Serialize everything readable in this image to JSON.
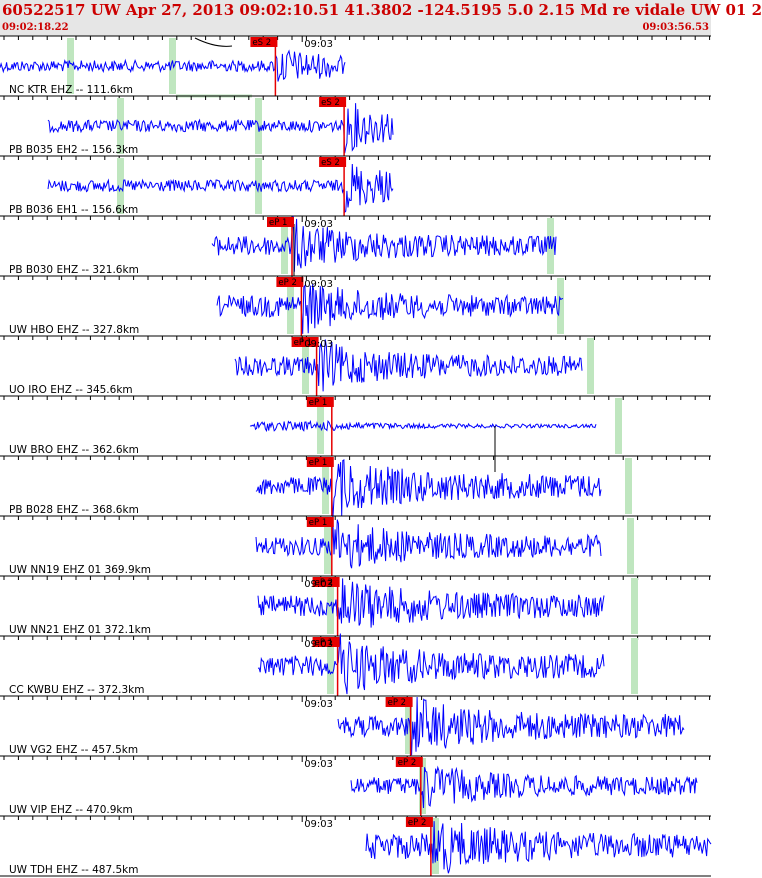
{
  "header": {
    "title": "60522517 UW Apr 27, 2013 09:02:10.51   41.3802 -124.5195  5.0 2.15 Md re vidale UW 01   2",
    "start_time": "09:02:18.22",
    "end_time": "09:03:56.53"
  },
  "colors": {
    "trace": "#0000ff",
    "pick": "#e60000",
    "window": "#bfe6bf",
    "text": "#000000",
    "header_text": "#cc0000"
  },
  "chart_data": {
    "type": "line",
    "title": "60522517 UW Apr 27, 2013 09:02:10.51   41.3802 -124.5195  5.0 2.15 Md re vidale UW 01   2",
    "x_range": [
      "09:02:18.22",
      "09:03:56.53"
    ],
    "minute_label": "09:03",
    "series": [
      {
        "name": "NC KTR EHZ -- 111.6km",
        "pick": "eS 2",
        "pick_time": "09:02:56.3",
        "minute_mark_shown": true
      },
      {
        "name": "PB B035 EH2 -- 156.3km",
        "pick": "eS 2",
        "pick_time": "09:03:05.8",
        "minute_mark_shown": false
      },
      {
        "name": "PB B036 EH1 -- 156.6km",
        "pick": "eS 2",
        "pick_time": "09:03:05.8",
        "minute_mark_shown": false
      },
      {
        "name": "PB B030 EHZ -- 321.6km",
        "pick": "eP 1",
        "pick_time": "09:02:58.6",
        "minute_mark_shown": true
      },
      {
        "name": "UW HBO EHZ -- 327.8km",
        "pick": "eP 2",
        "pick_time": "09:02:59.9",
        "minute_mark_shown": true
      },
      {
        "name": "UO IRO EHZ -- 345.6km",
        "pick": "eP 1",
        "pick_time": "09:03:02.0",
        "minute_mark_shown": true
      },
      {
        "name": "UW BRO EHZ -- 362.6km",
        "pick": "eP 1",
        "pick_time": "09:03:04.1",
        "minute_mark_shown": false
      },
      {
        "name": "PB B028 EHZ -- 368.6km",
        "pick": "eP 1",
        "pick_time": "09:03:04.1",
        "minute_mark_shown": false
      },
      {
        "name": "UW NN19 EHZ 01 369.9km",
        "pick": "eP 1",
        "pick_time": "09:03:04.1",
        "minute_mark_shown": false
      },
      {
        "name": "UW NN21 EHZ 01 372.1km",
        "pick": "eP 2",
        "pick_time": "09:03:04.9",
        "minute_mark_shown": true
      },
      {
        "name": "CC KWBU EHZ -- 372.3km",
        "pick": "eP 1",
        "pick_time": "09:03:04.9",
        "minute_mark_shown": true
      },
      {
        "name": "UW VG2 EHZ -- 457.5km",
        "pick": "eP 2",
        "pick_time": "09:03:15.0",
        "minute_mark_shown": true
      },
      {
        "name": "UW VIP EHZ -- 470.9km",
        "pick": "eP 2",
        "pick_time": "09:03:16.4",
        "minute_mark_shown": true
      },
      {
        "name": "UW TDH EHZ -- 487.5km",
        "pick": "eP 2",
        "pick_time": "09:03:17.8",
        "minute_mark_shown": true
      }
    ]
  }
}
